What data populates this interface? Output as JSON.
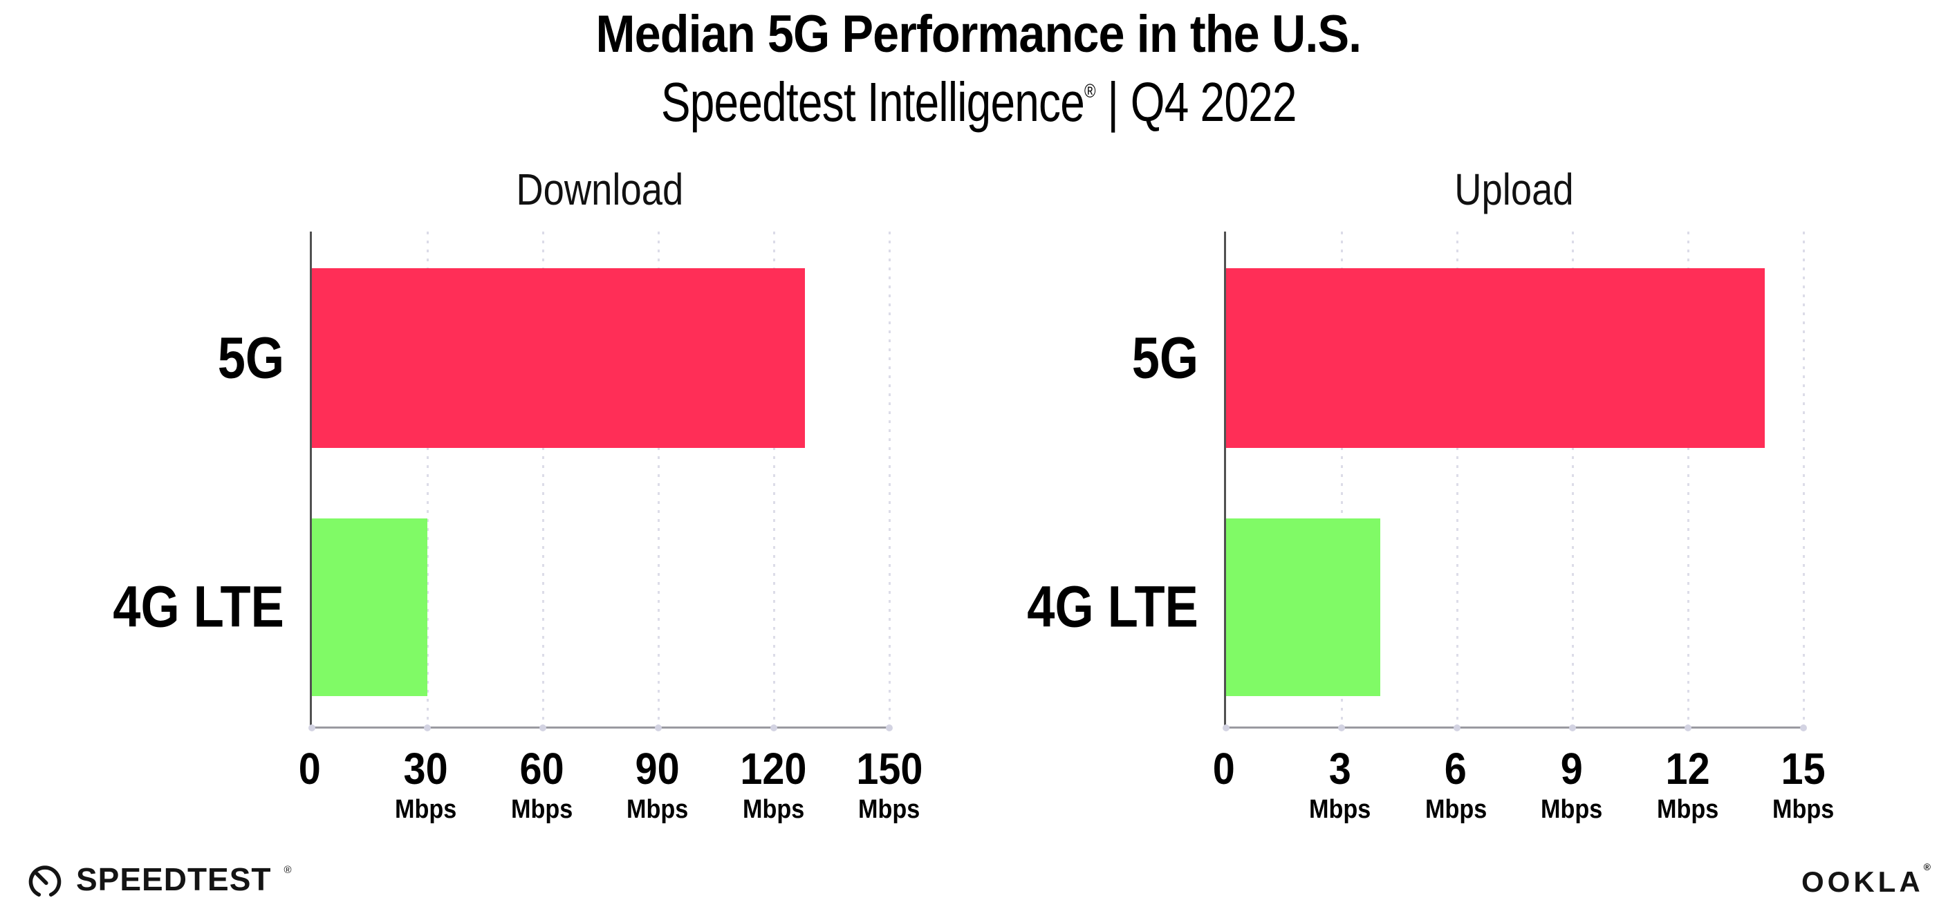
{
  "header": {
    "title": "Median 5G Performance in the U.S.",
    "subtitle_brand": "Speedtest Intelligence",
    "subtitle_registered": "®",
    "subtitle_divider": "|",
    "subtitle_period": "Q4 2022"
  },
  "chart_data": [
    {
      "type": "bar",
      "orientation": "horizontal",
      "title": "Download",
      "categories": [
        "5G",
        "4G LTE"
      ],
      "values": [
        128,
        30
      ],
      "unit": "Mbps",
      "xlim": [
        0,
        150
      ],
      "xticks": [
        0,
        30,
        60,
        90,
        120,
        150
      ],
      "tick_unit_label": "Mbps",
      "bar_colors": [
        "#ff2e57",
        "#80fa66"
      ],
      "grid": "dotted-vertical",
      "legend": "none"
    },
    {
      "type": "bar",
      "orientation": "horizontal",
      "title": "Upload",
      "categories": [
        "5G",
        "4G LTE"
      ],
      "values": [
        14,
        4
      ],
      "unit": "Mbps",
      "xlim": [
        0,
        15
      ],
      "xticks": [
        0,
        3,
        6,
        9,
        12,
        15
      ],
      "tick_unit_label": "Mbps",
      "bar_colors": [
        "#ff2e57",
        "#80fa66"
      ],
      "grid": "dotted-vertical",
      "legend": "none"
    }
  ],
  "footer": {
    "speedtest_text": "SPEEDTEST",
    "speedtest_mark": "®",
    "ookla_text": "OOKLA",
    "ookla_mark": "®"
  },
  "colors": {
    "bar_5g": "#ff2e57",
    "bar_4g_lte": "#80fa66",
    "gridline": "#dcdce8",
    "axis_left_spine": "#515151",
    "axis_bottom_spine": "#9a9aa0",
    "text": "#000000"
  }
}
